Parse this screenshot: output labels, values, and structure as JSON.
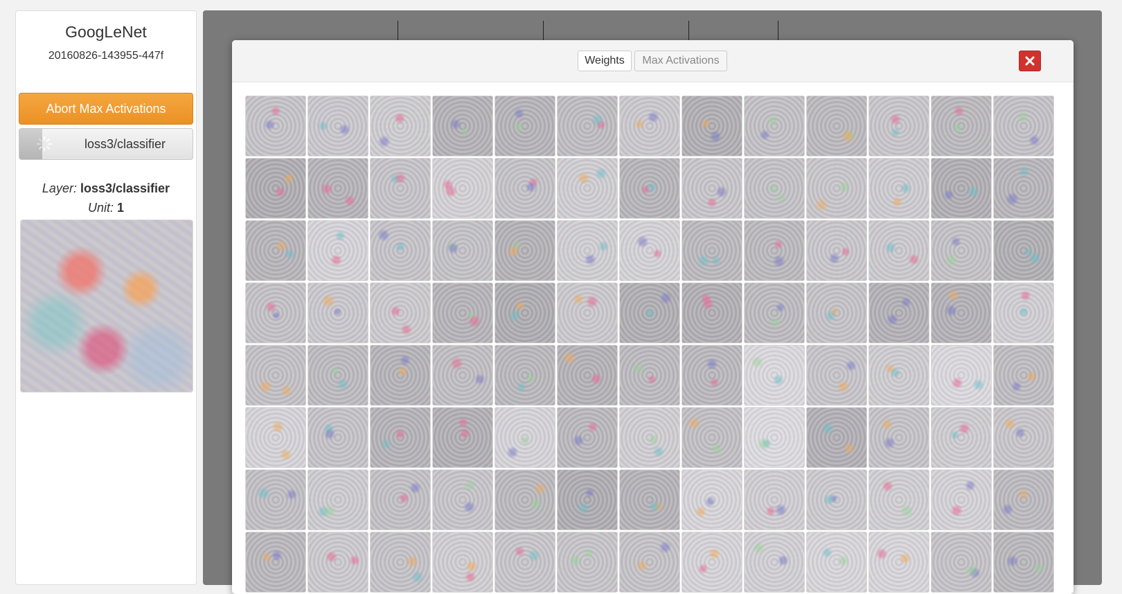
{
  "sidebar": {
    "model_name": "GoogLeNet",
    "job_id": "20160826-143955-447f",
    "abort_button_label": "Abort Max Activations",
    "progress": {
      "label": "loss3/classifier",
      "fraction": 0.13
    },
    "layer_label": "Layer:",
    "layer_value": "loss3/classifier",
    "unit_label": "Unit:",
    "unit_value": "1"
  },
  "modal": {
    "tabs": [
      {
        "label": "Weights",
        "active": true
      },
      {
        "label": "Max Activations",
        "active": false
      }
    ],
    "close_icon": "close-icon"
  },
  "colors": {
    "abort_button": "#ec9124",
    "close_button": "#d2322d",
    "canvas_background": "#7a7a7a"
  },
  "tiles": {
    "count": 104,
    "columns": 13
  }
}
